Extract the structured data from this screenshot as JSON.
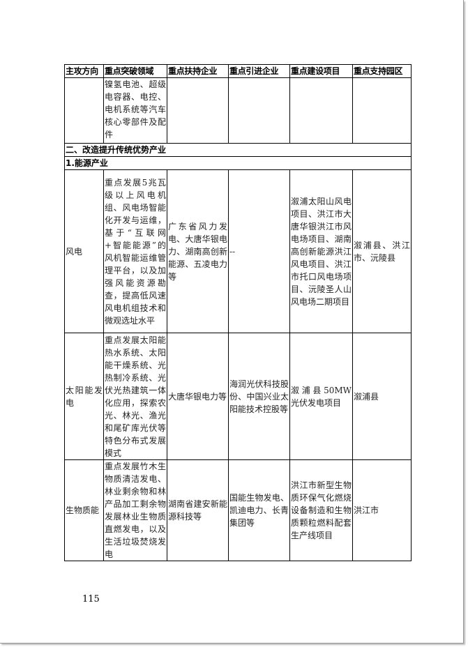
{
  "table": {
    "headers": [
      "主攻方向",
      "重点突破领域",
      "重点扶持企业",
      "重点引进企业",
      "重点建设项目",
      "重点支持园区"
    ],
    "continued_row": {
      "field": "镍氢电池、超级电容器、电控、电机系统等汽车核心零部件及配件"
    },
    "section": "二、改造提升传统优势产业",
    "subsection": "1.能源产业",
    "rows": [
      {
        "direction": "风电",
        "field": "重点发展5兆瓦级以上风电机组、风电场智能化开发与运维，基于“互联网+智能能源”的风机智能运维管理平台，以及加强风能资源勘查，提高低风速风电机组技术和微观选址水平",
        "support": "广东省风力发电、大唐华银电力、湖南高创新能源、五凌电力等",
        "introduce": "--",
        "projects": "溆浦太阳山风电项目、洪江市大唐华银洪江市风电场项目、湖南高创新能源洪江风电项目、洪江市托口风电场项目、沅陵圣人山风电场二期项目",
        "parks": "溆浦县、洪江市、沅陵县"
      },
      {
        "direction": "太阳能发电",
        "field": "重点发展太阳能热水系统、太阳能干燥系统、光热制冷系统、光伏光热建筑一体化应用，探索农光、林光、渔光和尾矿库光伏等特色分布式发展模式",
        "support": "大唐华银电力等",
        "introduce": "海润光伏科技股份、中国兴业太阳能技术控股等",
        "projects": "溆浦县50MW光伏发电项目",
        "parks": "溆浦县"
      },
      {
        "direction": "生物质能",
        "field": "重点发展竹木生物质清洁发电、林业剩余物和林产品加工剩余物发展林业生物质直燃发电，以及生活垃圾焚烧发电",
        "support": "湖南省建安新能源科技等",
        "introduce": "国能生物发电、凯迪电力、长青集团等",
        "projects": "洪江市新型生物质环保气化燃烧设备制造和生物质颗粒燃料配套生产线项目",
        "parks": "洪江市"
      }
    ]
  },
  "page_number": "115"
}
